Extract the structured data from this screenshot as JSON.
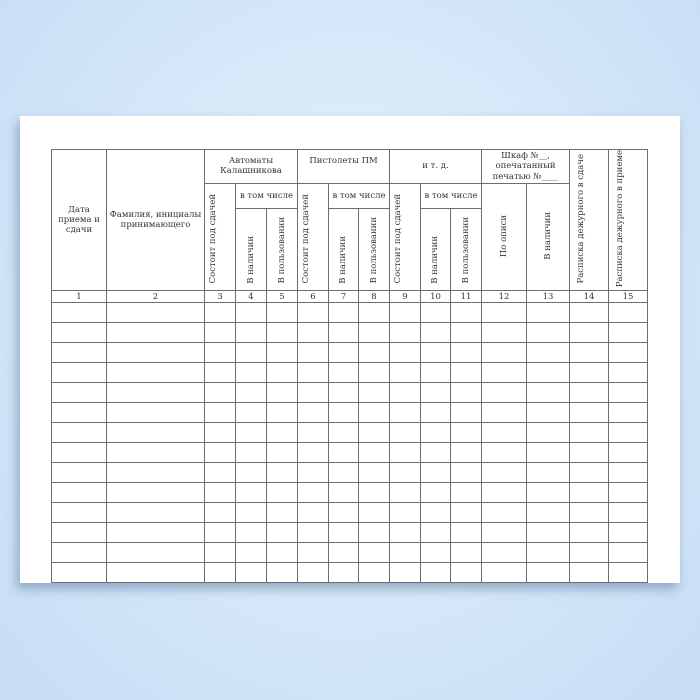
{
  "headers": {
    "date": "Дата приема и сдачи",
    "name": "Фамилия, инициалы принимающего",
    "ak": "Автоматы Калашникова",
    "pm": "Пистолеты ПМ",
    "etc": "и т. д.",
    "safe": "Шкаф №__, опечатанный печатью №____",
    "incl": "в том числе",
    "state": "Состоит под сдачей",
    "avail": "В наличии",
    "use": "В пользовании",
    "inventory": "По описи",
    "sign_hand": "Расписка дежурного в сдаче",
    "sign_take": "Расписка дежурного в приеме"
  },
  "column_numbers": [
    "1",
    "2",
    "3",
    "4",
    "5",
    "6",
    "7",
    "8",
    "9",
    "10",
    "11",
    "12",
    "13",
    "14",
    "15"
  ],
  "empty_rows": 14
}
